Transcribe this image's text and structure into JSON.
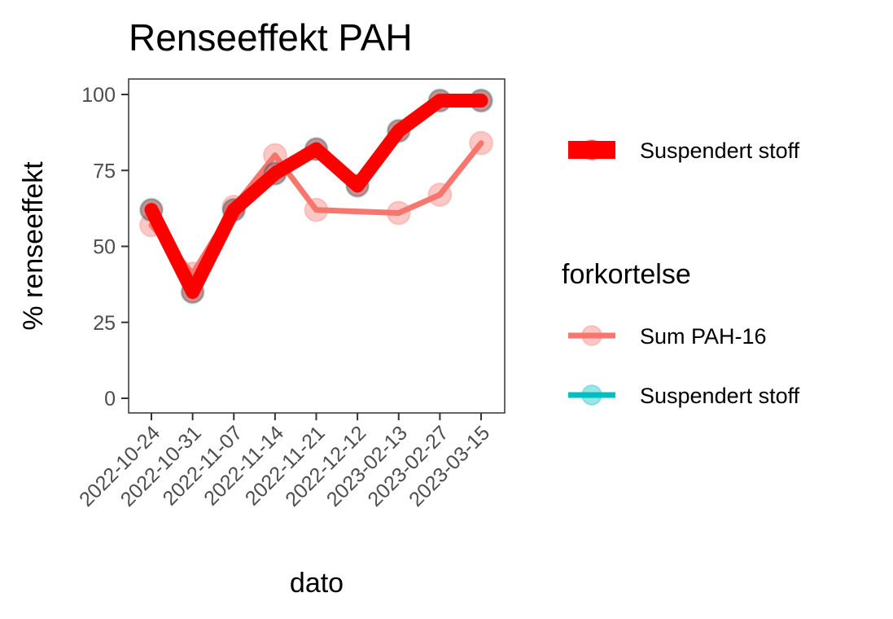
{
  "chart_data": {
    "type": "line",
    "title": "Renseeffekt PAH",
    "xlabel": "dato",
    "ylabel": "% renseeffekt",
    "categories": [
      "2022-10-24",
      "2022-10-31",
      "2022-11-07",
      "2022-11-14",
      "2022-11-21",
      "2022-12-12",
      "2023-02-13",
      "2023-02-27",
      "2023-03-15"
    ],
    "ylim": [
      0,
      100
    ],
    "yticks": [
      0,
      25,
      50,
      75,
      100
    ],
    "grid": false,
    "legend_position": "right",
    "highlight": {
      "name": "Suspendert stoff",
      "color": "#ff0000",
      "values": [
        62,
        35,
        62,
        74,
        82,
        70,
        88,
        98,
        98
      ]
    },
    "series": [
      {
        "name": "Sum PAH-16",
        "color": "#f8766d",
        "x": [
          "2022-10-24",
          "2022-10-31",
          "2022-11-07",
          "2022-11-14",
          "2022-11-21",
          "2023-02-13",
          "2023-02-27",
          "2023-03-15"
        ],
        "values": [
          57,
          41,
          63,
          80,
          62,
          61,
          67,
          84
        ]
      },
      {
        "name": "Suspendert stoff",
        "color": "#00bfc4",
        "x": [
          "2022-10-24",
          "2022-10-31",
          "2022-11-07",
          "2022-11-14",
          "2022-11-21",
          "2022-12-12",
          "2023-02-13",
          "2023-02-27",
          "2023-03-15"
        ],
        "values": [
          62,
          35,
          62,
          74,
          82,
          70,
          88,
          98,
          98
        ]
      }
    ],
    "legend_title": "forkortelse"
  }
}
